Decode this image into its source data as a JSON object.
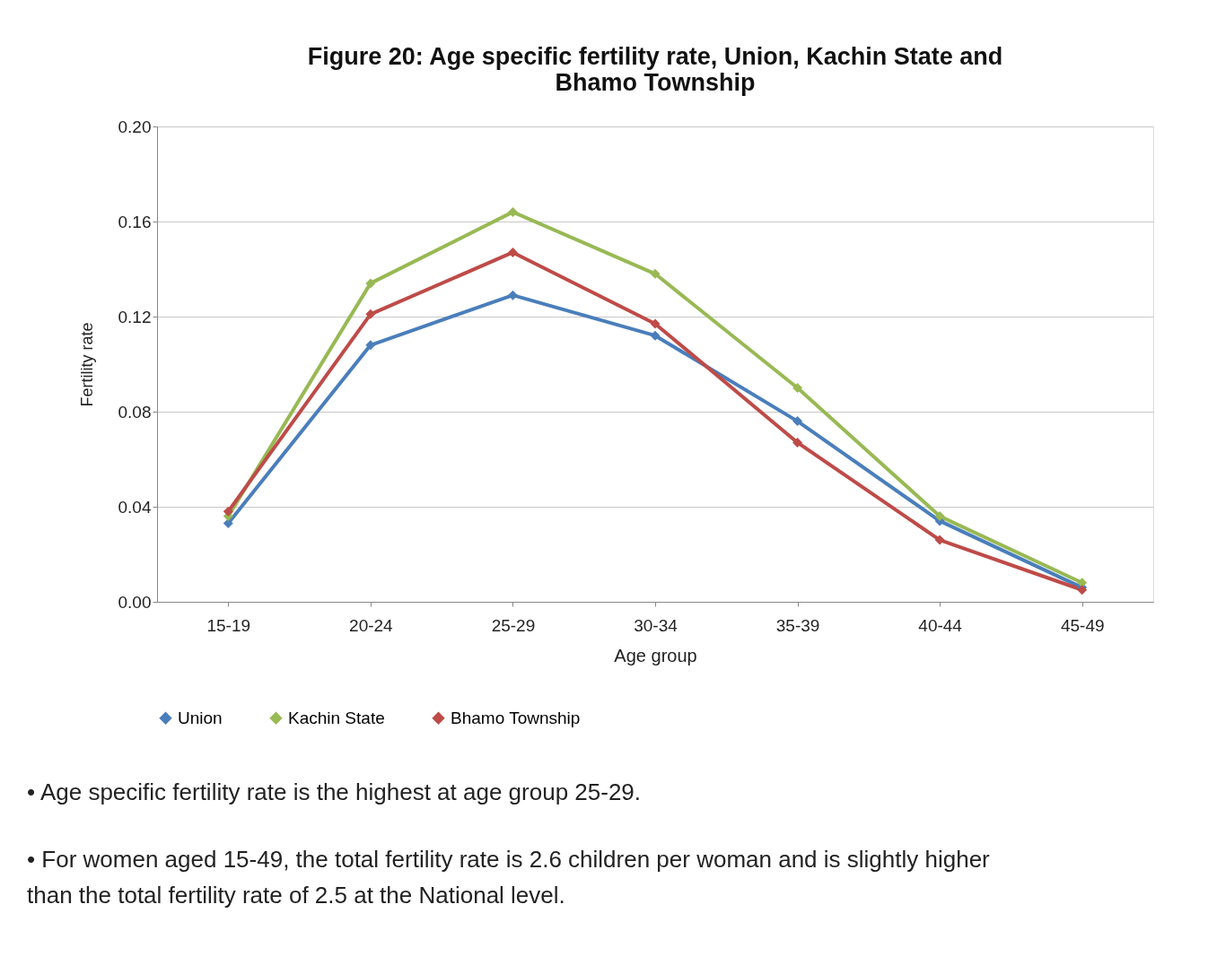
{
  "chart_data": {
    "type": "line",
    "title": "Figure 20: Age specific fertility rate, Union, Kachin State and Bhamo Township",
    "xlabel": "Age group",
    "ylabel": "Fertility rate",
    "categories": [
      "15-19",
      "20-24",
      "25-29",
      "30-34",
      "35-39",
      "40-44",
      "45-49"
    ],
    "series": [
      {
        "name": "Union",
        "color": "#4a7ebb",
        "values": [
          0.033,
          0.108,
          0.129,
          0.112,
          0.076,
          0.034,
          0.006
        ]
      },
      {
        "name": "Kachin State",
        "color": "#98b954",
        "values": [
          0.036,
          0.134,
          0.164,
          0.138,
          0.09,
          0.036,
          0.008
        ]
      },
      {
        "name": "Bhamo Township",
        "color": "#be4b48",
        "values": [
          0.038,
          0.121,
          0.147,
          0.117,
          0.067,
          0.026,
          0.005
        ]
      }
    ],
    "ylim": [
      0,
      0.2
    ],
    "yticks": [
      {
        "value": 0,
        "label": "0.00"
      },
      {
        "value": 0.04,
        "label": "0.04"
      },
      {
        "value": 0.08,
        "label": "0.08"
      },
      {
        "value": 0.12,
        "label": "0.12"
      },
      {
        "value": 0.16,
        "label": "0.16"
      },
      {
        "value": 0.2,
        "label": "0.20"
      }
    ],
    "grid": "y",
    "legend": "bottom",
    "marker": "diamond",
    "line_style": "solid",
    "annotations": [
      "• Age specific fertility rate is the highest at age group 25-29.",
      "• For women aged 15-49, the total fertility rate is 2.6 children per woman and is slightly higher than the total fertility rate of 2.5 at the National level."
    ]
  }
}
